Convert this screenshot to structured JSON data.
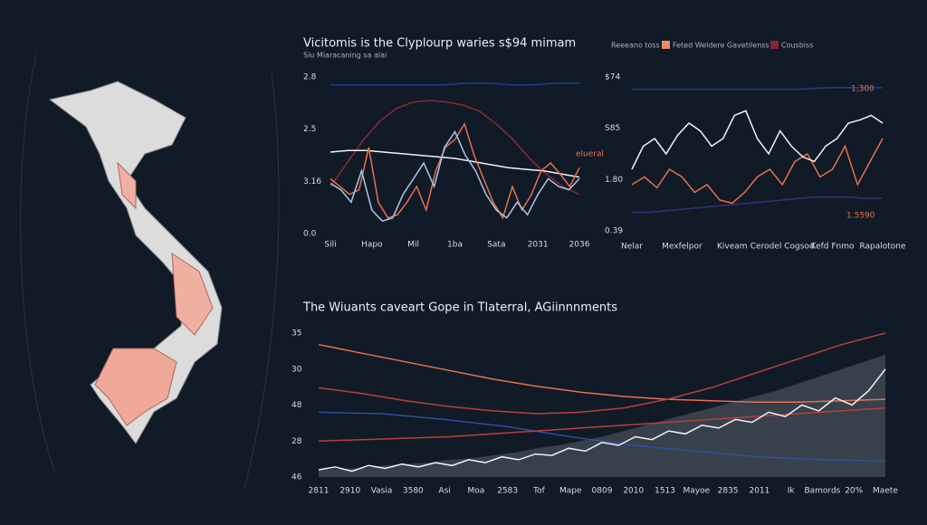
{
  "chart_data": [
    {
      "type": "line",
      "title": "Vicitomis is the Clyplourp waries s$94 mimam",
      "subtitle": "Siu Miaracaning sa alai",
      "ylim": [
        0,
        100
      ],
      "y_labels": [
        "2.8",
        "2.5",
        "3.16",
        "0.0"
      ],
      "x_labels": [
        "Sili",
        "Hapo",
        "Mil",
        "1ba",
        "Sata",
        "2031",
        "2036"
      ],
      "annotations": [
        "elueral"
      ],
      "series": [
        {
          "color": "#1f3f8f",
          "values": [
            95,
            95,
            95,
            95,
            95,
            95,
            96,
            96,
            95,
            95,
            96,
            96
          ]
        },
        {
          "color": "#8a2a30",
          "values": [
            30,
            45,
            60,
            72,
            80,
            84,
            85,
            84,
            82,
            78,
            70,
            60,
            48,
            38,
            30,
            25
          ]
        },
        {
          "color": "#f2f2f2",
          "values": [
            52,
            53,
            53,
            52,
            51,
            50,
            49,
            48,
            46,
            44,
            42,
            41,
            40,
            38,
            36
          ]
        },
        {
          "color": "#e8704a",
          "values": [
            35,
            30,
            25,
            28,
            55,
            20,
            10,
            12,
            20,
            30,
            15,
            40,
            55,
            60,
            70,
            50,
            35,
            20,
            10,
            30,
            15,
            25,
            40,
            45,
            38,
            30,
            42
          ]
        },
        {
          "color": "#a8c8e8",
          "values": [
            32,
            28,
            20,
            40,
            15,
            8,
            10,
            25,
            35,
            45,
            30,
            55,
            65,
            50,
            40,
            25,
            15,
            10,
            20,
            12,
            25,
            35,
            30,
            28,
            35
          ]
        }
      ]
    },
    {
      "type": "line",
      "legend": [
        {
          "label": "Reeeano toss"
        },
        {
          "label": "Feted Weldere Gavetilenss",
          "color": "#f08a6a"
        },
        {
          "label": "Cousbiss",
          "color": "#8a1f3a"
        }
      ],
      "ylim": [
        0,
        100
      ],
      "y_labels": [
        "$74",
        "S85",
        "1.80",
        "0.39"
      ],
      "x_labels": [
        "Nelar",
        "Mexfelpor",
        "Kiveam",
        "Cerodel Cogsod",
        "Kefd Fnmo",
        "Rapalotone"
      ],
      "annotations": [
        "1,300",
        "1.5590"
      ],
      "series": [
        {
          "color": "#1f3f8f",
          "values": [
            92,
            92,
            92,
            92,
            92,
            92,
            92,
            93,
            93,
            93
          ]
        },
        {
          "color": "#3a2f7a",
          "values": [
            12,
            12,
            13,
            14,
            15,
            16,
            17,
            18,
            19,
            20,
            21,
            22,
            22,
            22,
            21,
            21
          ]
        },
        {
          "color": "#e8704a",
          "values": [
            30,
            35,
            28,
            40,
            35,
            25,
            30,
            20,
            18,
            25,
            35,
            40,
            30,
            45,
            50,
            35,
            40,
            55,
            30,
            45,
            60
          ]
        },
        {
          "color": "#f2f2f2",
          "values": [
            40,
            55,
            60,
            50,
            62,
            70,
            65,
            55,
            60,
            75,
            78,
            60,
            50,
            65,
            55,
            48,
            45,
            55,
            60,
            70,
            72,
            75,
            70
          ]
        }
      ]
    },
    {
      "type": "line",
      "title": "The Wiuants caveart Gope in Tlaterral, AGiinnnments",
      "ylim": [
        0,
        100
      ],
      "y_labels": [
        "35",
        "30",
        "48",
        "28",
        "46"
      ],
      "x_labels": [
        "2811",
        "2910",
        "Vasia",
        "3580",
        "Asi",
        "Moa",
        "2583",
        "Tof",
        "Mape",
        "0809",
        "2010",
        "1513",
        "Mayoe",
        "2835",
        "2011",
        "Ik",
        "Bamords",
        "20%",
        "Maete"
      ],
      "series": [
        {
          "color": "#5a606a",
          "area": true,
          "values": [
            5,
            6,
            6,
            8,
            9,
            10,
            12,
            13,
            15,
            17,
            20,
            22,
            25,
            28,
            32,
            36,
            40,
            44,
            48,
            52,
            56,
            60,
            65,
            70,
            75,
            80,
            85
          ]
        },
        {
          "color": "#e8704a",
          "values": [
            92,
            86,
            80,
            74,
            68,
            63,
            59,
            56,
            54,
            53,
            52,
            52,
            53,
            54
          ]
        },
        {
          "color": "#b8403a",
          "values": [
            62,
            58,
            53,
            49,
            46,
            44,
            45,
            48,
            54,
            62,
            72,
            82,
            92,
            100
          ]
        },
        {
          "color": "#2f4f9f",
          "values": [
            45,
            44,
            40,
            35,
            28,
            22,
            18,
            14,
            12,
            11
          ]
        },
        {
          "color": "#b8403a",
          "values": [
            25,
            26,
            27,
            28,
            30,
            32,
            34,
            36,
            38,
            40,
            42,
            44,
            46,
            48
          ]
        },
        {
          "color": "#f2f2f2",
          "values": [
            5,
            7,
            4,
            8,
            6,
            9,
            7,
            10,
            8,
            12,
            10,
            14,
            12,
            16,
            15,
            20,
            18,
            24,
            22,
            28,
            26,
            32,
            30,
            36,
            34,
            40,
            38,
            45,
            42,
            50,
            46,
            55,
            50,
            60,
            75
          ]
        }
      ]
    }
  ]
}
